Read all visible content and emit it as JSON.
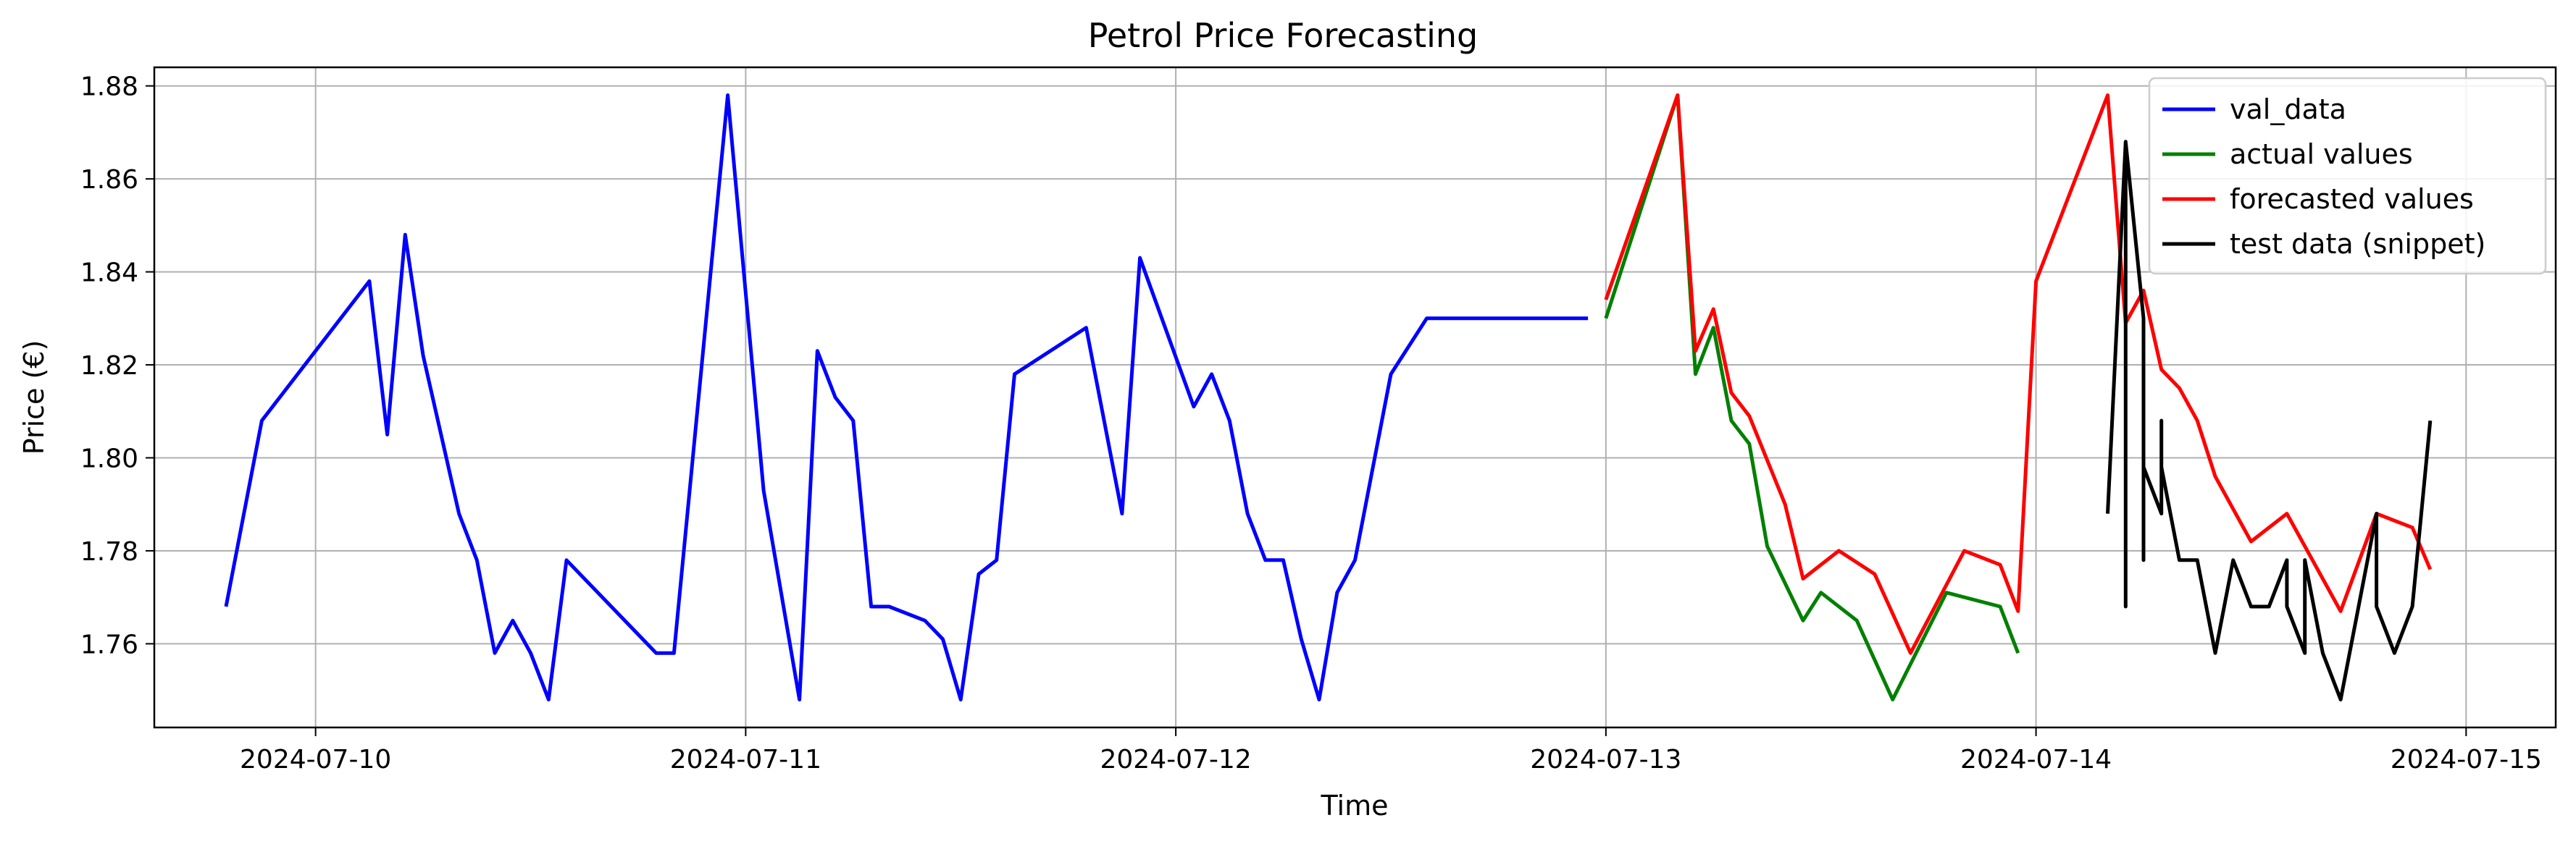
{
  "chart_data": {
    "type": "line",
    "title": "Petrol Price Forecasting",
    "xlabel": "Time",
    "ylabel": "Price (€)",
    "xlim": [
      "2024-07-09T15:00",
      "2024-07-15T05:00"
    ],
    "ylim": [
      1.742,
      1.884
    ],
    "grid": true,
    "legend_position": "top-right",
    "x_ticks": [
      {
        "value": "2024-07-10T00:00",
        "label": "2024-07-10"
      },
      {
        "value": "2024-07-11T00:00",
        "label": "2024-07-11"
      },
      {
        "value": "2024-07-12T00:00",
        "label": "2024-07-12"
      },
      {
        "value": "2024-07-13T00:00",
        "label": "2024-07-13"
      },
      {
        "value": "2024-07-14T00:00",
        "label": "2024-07-14"
      },
      {
        "value": "2024-07-15T00:00",
        "label": "2024-07-15"
      }
    ],
    "y_ticks": [
      {
        "value": 1.76,
        "label": "1.76"
      },
      {
        "value": 1.78,
        "label": "1.78"
      },
      {
        "value": 1.8,
        "label": "1.80"
      },
      {
        "value": 1.82,
        "label": "1.82"
      },
      {
        "value": 1.84,
        "label": "1.84"
      },
      {
        "value": 1.86,
        "label": "1.86"
      },
      {
        "value": 1.88,
        "label": "1.88"
      }
    ],
    "series": [
      {
        "name": "val_data",
        "color": "#0000ff",
        "x": [
          "2024-07-09T19:00",
          "2024-07-09T21:00",
          "2024-07-10T03:00",
          "2024-07-10T04:00",
          "2024-07-10T05:00",
          "2024-07-10T06:00",
          "2024-07-10T08:00",
          "2024-07-10T09:00",
          "2024-07-10T10:00",
          "2024-07-10T11:00",
          "2024-07-10T12:00",
          "2024-07-10T13:00",
          "2024-07-10T14:00",
          "2024-07-10T19:00",
          "2024-07-10T20:00",
          "2024-07-10T23:00",
          "2024-07-11T01:00",
          "2024-07-11T03:00",
          "2024-07-11T04:00",
          "2024-07-11T05:00",
          "2024-07-11T06:00",
          "2024-07-11T07:00",
          "2024-07-11T08:00",
          "2024-07-11T10:00",
          "2024-07-11T11:00",
          "2024-07-11T12:00",
          "2024-07-11T13:00",
          "2024-07-11T14:00",
          "2024-07-11T15:00",
          "2024-07-11T19:00",
          "2024-07-11T21:00",
          "2024-07-11T22:00",
          "2024-07-12T01:00",
          "2024-07-12T02:00",
          "2024-07-12T03:00",
          "2024-07-12T04:00",
          "2024-07-12T05:00",
          "2024-07-12T06:00",
          "2024-07-12T07:00",
          "2024-07-12T08:00",
          "2024-07-12T09:00",
          "2024-07-12T10:00",
          "2024-07-12T12:00",
          "2024-07-12T14:00",
          "2024-07-12T16:00",
          "2024-07-12T20:00",
          "2024-07-12T21:00",
          "2024-07-12T22:00",
          "2024-07-12T23:00"
        ],
        "values": [
          1.768,
          1.808,
          1.838,
          1.805,
          1.848,
          1.822,
          1.788,
          1.778,
          1.758,
          1.765,
          1.758,
          1.748,
          1.778,
          1.758,
          1.758,
          1.878,
          1.793,
          1.748,
          1.823,
          1.813,
          1.808,
          1.768,
          1.768,
          1.765,
          1.761,
          1.748,
          1.775,
          1.778,
          1.818,
          1.828,
          1.788,
          1.843,
          1.811,
          1.818,
          1.808,
          1.788,
          1.778,
          1.778,
          1.761,
          1.748,
          1.771,
          1.778,
          1.818,
          1.83,
          1.83,
          1.83,
          1.83,
          1.83,
          1.83
        ]
      },
      {
        "name": "actual values",
        "color": "#008000",
        "x": [
          "2024-07-13T00:00",
          "2024-07-13T04:00",
          "2024-07-13T05:00",
          "2024-07-13T06:00",
          "2024-07-13T07:00",
          "2024-07-13T08:00",
          "2024-07-13T09:00",
          "2024-07-13T11:00",
          "2024-07-13T12:00",
          "2024-07-13T14:00",
          "2024-07-13T16:00",
          "2024-07-13T19:00",
          "2024-07-13T22:00",
          "2024-07-13T23:00"
        ],
        "values": [
          1.83,
          1.878,
          1.818,
          1.828,
          1.808,
          1.803,
          1.781,
          1.765,
          1.771,
          1.765,
          1.748,
          1.771,
          1.768,
          1.758
        ]
      },
      {
        "name": "forecasted values",
        "color": "#ff0000",
        "x": [
          "2024-07-13T00:00",
          "2024-07-13T04:00",
          "2024-07-13T05:00",
          "2024-07-13T06:00",
          "2024-07-13T07:00",
          "2024-07-13T08:00",
          "2024-07-13T10:00",
          "2024-07-13T11:00",
          "2024-07-13T13:00",
          "2024-07-13T15:00",
          "2024-07-13T17:00",
          "2024-07-13T20:00",
          "2024-07-13T22:00",
          "2024-07-13T23:00",
          "2024-07-14T00:00",
          "2024-07-14T04:00",
          "2024-07-14T05:00",
          "2024-07-14T06:00",
          "2024-07-14T07:00",
          "2024-07-14T08:00",
          "2024-07-14T09:00",
          "2024-07-14T10:00",
          "2024-07-14T12:00",
          "2024-07-14T14:00",
          "2024-07-14T17:00",
          "2024-07-14T19:00",
          "2024-07-14T21:00",
          "2024-07-14T22:00"
        ],
        "values": [
          1.834,
          1.878,
          1.823,
          1.832,
          1.814,
          1.809,
          1.79,
          1.774,
          1.78,
          1.775,
          1.758,
          1.78,
          1.777,
          1.767,
          1.838,
          1.878,
          1.829,
          1.836,
          1.819,
          1.815,
          1.808,
          1.796,
          1.782,
          1.788,
          1.767,
          1.788,
          1.785,
          1.776
        ]
      },
      {
        "name": "test data (snippet)",
        "color": "#000000",
        "x": [
          "2024-07-14T04:00",
          "2024-07-14T05:00",
          "2024-07-14T05:00",
          "2024-07-14T05:00",
          "2024-07-14T06:00",
          "2024-07-14T06:00",
          "2024-07-14T06:00",
          "2024-07-14T07:00",
          "2024-07-14T07:00",
          "2024-07-14T07:00",
          "2024-07-14T08:00",
          "2024-07-14T09:00",
          "2024-07-14T10:00",
          "2024-07-14T10:00",
          "2024-07-14T11:00",
          "2024-07-14T11:00",
          "2024-07-14T12:00",
          "2024-07-14T13:00",
          "2024-07-14T14:00",
          "2024-07-14T14:00",
          "2024-07-14T15:00",
          "2024-07-14T15:00",
          "2024-07-14T16:00",
          "2024-07-14T17:00",
          "2024-07-14T19:00",
          "2024-07-14T19:00",
          "2024-07-14T20:00",
          "2024-07-14T21:00",
          "2024-07-14T22:00"
        ],
        "values": [
          1.788,
          1.868,
          1.768,
          1.868,
          1.83,
          1.778,
          1.798,
          1.788,
          1.808,
          1.798,
          1.778,
          1.778,
          1.758,
          1.758,
          1.778,
          1.778,
          1.768,
          1.768,
          1.778,
          1.768,
          1.758,
          1.778,
          1.758,
          1.748,
          1.788,
          1.768,
          1.758,
          1.768,
          1.808
        ]
      }
    ]
  }
}
